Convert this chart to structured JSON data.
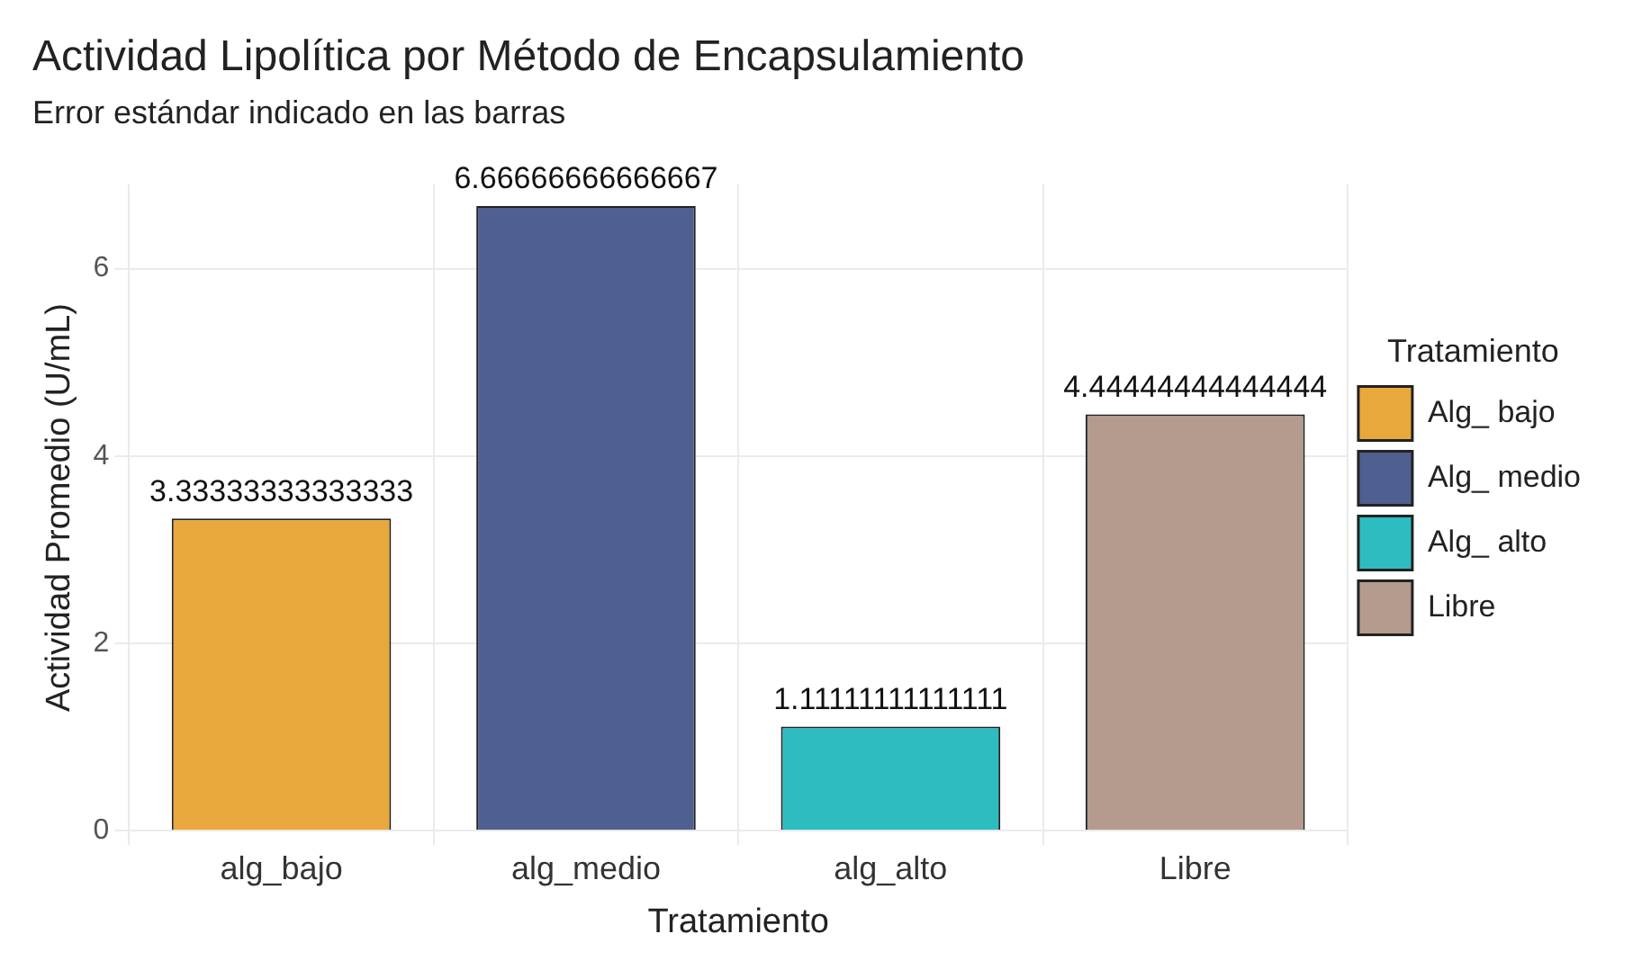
{
  "chart_data": {
    "type": "bar",
    "title": "Actividad Lipolítica por Método de Encapsulamiento",
    "subtitle": "Error estándar indicado en las barras",
    "xlabel": "Tratamiento",
    "ylabel": "Actividad Promedio (U/mL)",
    "legend_title": "Tratamiento",
    "categories": [
      "alg_bajo",
      "alg_medio",
      "alg_alto",
      "Libre"
    ],
    "series": [
      {
        "name": "Alg_ bajo",
        "color": "#e8a83c",
        "values": [
          3.33333333333333,
          null,
          null,
          null
        ]
      },
      {
        "name": "Alg_ medio",
        "color": "#4f5f8f",
        "values": [
          null,
          6.66666666666667,
          null,
          null
        ]
      },
      {
        "name": "Alg_ alto",
        "color": "#2dbcc0",
        "values": [
          null,
          null,
          1.11111111111111,
          null
        ]
      },
      {
        "name": "Libre",
        "color": "#b59b8e",
        "values": [
          null,
          null,
          null,
          4.44444444444444
        ]
      }
    ],
    "ylim": [
      0,
      6.9
    ],
    "yticks": [
      0,
      2,
      4,
      6
    ],
    "grid": true,
    "legend": "right",
    "data_labels": true
  }
}
